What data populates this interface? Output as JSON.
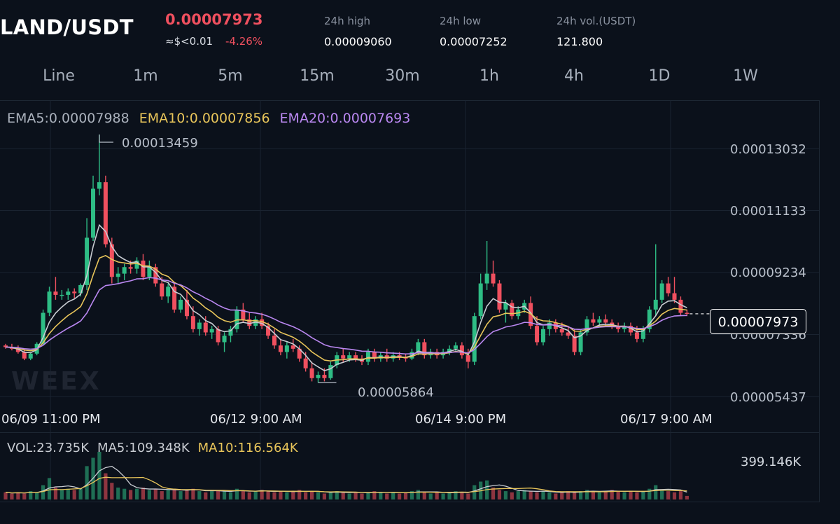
{
  "header": {
    "pair": "LAND/USDT",
    "price": "0.00007973",
    "usd_approx": "≈$<0.01",
    "change": "-4.26%",
    "stats": [
      {
        "label": "24h high",
        "value": "0.00009060"
      },
      {
        "label": "24h low",
        "value": "0.00007252"
      },
      {
        "label": "24h vol.(USDT)",
        "value": "121.800"
      }
    ]
  },
  "tabs": [
    "Line",
    "1m",
    "5m",
    "15m",
    "30m",
    "1h",
    "4h",
    "1D",
    "1W"
  ],
  "indicators": {
    "ema5": "EMA5:0.00007988",
    "ema10": "EMA10:0.00007856",
    "ema20": "EMA20:0.00007693"
  },
  "price_axis": [
    "0.00013032",
    "0.00011133",
    "0.00009234",
    "0.00007336",
    "0.00005437"
  ],
  "time_axis": [
    "06/09 11:00 PM",
    "06/12 9:00 AM",
    "06/14 9:00 PM",
    "06/17 9:00 AM"
  ],
  "annotations": {
    "high": "0.00013459",
    "low": "0.00005864",
    "current": "0.00007973"
  },
  "volume": {
    "vol": "VOL:23.735K",
    "ma5": "MA5:109.348K",
    "ma10": "MA10:116.564K",
    "max": "399.146K"
  },
  "watermark": "WEEX",
  "colors": {
    "up": "#2ebd85",
    "down": "#f0505f",
    "ema5": "#c8ccd2",
    "ema10": "#e8c55a",
    "ema20": "#b987f0",
    "background": "#0b111b"
  },
  "chart_data": {
    "type": "candlestick",
    "ylim": [
      5e-05,
      0.000138
    ],
    "ticks": [
      0.00013032,
      0.00011133,
      9.234e-05,
      7.336e-05,
      5.437e-05
    ],
    "candles": [
      [
        7.0,
        7.05,
        6.9,
        6.95
      ],
      [
        6.95,
        7.05,
        6.85,
        6.9
      ],
      [
        6.9,
        7.0,
        6.75,
        6.8
      ],
      [
        6.8,
        6.9,
        6.55,
        6.6
      ],
      [
        6.6,
        6.8,
        6.55,
        6.75
      ],
      [
        6.75,
        7.1,
        6.7,
        7.05
      ],
      [
        7.05,
        8.1,
        7.0,
        8.0
      ],
      [
        8.0,
        8.8,
        7.9,
        8.65
      ],
      [
        8.65,
        9.1,
        8.4,
        8.55
      ],
      [
        8.55,
        8.7,
        8.4,
        8.55
      ],
      [
        8.55,
        8.75,
        8.4,
        8.65
      ],
      [
        8.65,
        8.75,
        8.45,
        8.6
      ],
      [
        8.6,
        8.9,
        8.5,
        8.85
      ],
      [
        8.85,
        10.9,
        8.7,
        10.3
      ],
      [
        10.3,
        12.2,
        10.2,
        11.8
      ],
      [
        11.8,
        13.46,
        11.6,
        12.0
      ],
      [
        12.0,
        12.2,
        10.0,
        10.1
      ],
      [
        10.1,
        10.3,
        8.9,
        9.1
      ],
      [
        9.1,
        9.4,
        8.9,
        9.2
      ],
      [
        9.2,
        9.5,
        9.0,
        9.4
      ],
      [
        9.4,
        9.6,
        9.2,
        9.35
      ],
      [
        9.35,
        9.7,
        9.2,
        9.6
      ],
      [
        9.6,
        9.8,
        9.0,
        9.1
      ],
      [
        9.1,
        9.6,
        9.0,
        9.4
      ],
      [
        9.4,
        9.5,
        8.8,
        8.9
      ],
      [
        8.9,
        9.1,
        8.4,
        8.5
      ],
      [
        8.5,
        8.9,
        8.3,
        8.8
      ],
      [
        8.8,
        8.9,
        8.0,
        8.1
      ],
      [
        8.1,
        8.5,
        8.0,
        8.4
      ],
      [
        8.4,
        8.7,
        7.8,
        7.9
      ],
      [
        7.9,
        8.2,
        7.4,
        7.5
      ],
      [
        7.5,
        7.8,
        7.3,
        7.7
      ],
      [
        7.7,
        7.9,
        7.3,
        7.4
      ],
      [
        7.4,
        7.6,
        7.2,
        7.5
      ],
      [
        7.5,
        7.6,
        7.0,
        7.1
      ],
      [
        7.1,
        7.4,
        6.8,
        7.3
      ],
      [
        7.3,
        7.6,
        7.1,
        7.5
      ],
      [
        7.5,
        8.2,
        7.4,
        8.1
      ],
      [
        8.1,
        8.3,
        7.7,
        7.8
      ],
      [
        7.8,
        8.0,
        7.5,
        7.6
      ],
      [
        7.6,
        7.9,
        7.5,
        7.8
      ],
      [
        7.8,
        8.0,
        7.5,
        7.6
      ],
      [
        7.6,
        7.7,
        7.2,
        7.3
      ],
      [
        7.3,
        7.5,
        6.9,
        7.0
      ],
      [
        7.0,
        7.2,
        6.7,
        6.8
      ],
      [
        6.8,
        7.1,
        6.6,
        7.0
      ],
      [
        7.0,
        7.2,
        6.8,
        6.9
      ],
      [
        6.9,
        7.0,
        6.5,
        6.6
      ],
      [
        6.6,
        6.8,
        6.2,
        6.3
      ],
      [
        6.3,
        6.5,
        5.9,
        6.0
      ],
      [
        6.0,
        6.2,
        5.86,
        6.1
      ],
      [
        6.1,
        6.3,
        5.9,
        6.0
      ],
      [
        6.0,
        6.5,
        5.95,
        6.4
      ],
      [
        6.4,
        6.8,
        6.3,
        6.7
      ],
      [
        6.7,
        6.9,
        6.5,
        6.6
      ],
      [
        6.6,
        6.8,
        6.5,
        6.7
      ],
      [
        6.7,
        6.8,
        6.5,
        6.6
      ],
      [
        6.6,
        6.7,
        6.4,
        6.5
      ],
      [
        6.5,
        6.9,
        6.4,
        6.8
      ],
      [
        6.8,
        6.9,
        6.5,
        6.6
      ],
      [
        6.6,
        6.8,
        6.5,
        6.7
      ],
      [
        6.7,
        6.9,
        6.5,
        6.6
      ],
      [
        6.6,
        6.8,
        6.5,
        6.7
      ],
      [
        6.7,
        6.8,
        6.55,
        6.65
      ],
      [
        6.65,
        6.75,
        6.5,
        6.6
      ],
      [
        6.6,
        6.9,
        6.55,
        6.8
      ],
      [
        6.8,
        7.2,
        6.7,
        7.1
      ],
      [
        7.1,
        7.2,
        6.6,
        6.7
      ],
      [
        6.7,
        6.9,
        6.6,
        6.8
      ],
      [
        6.8,
        6.9,
        6.6,
        6.7
      ],
      [
        6.7,
        6.9,
        6.6,
        6.8
      ],
      [
        6.8,
        7.0,
        6.7,
        6.9
      ],
      [
        6.9,
        7.1,
        6.8,
        7.0
      ],
      [
        7.0,
        7.1,
        6.6,
        6.7
      ],
      [
        6.7,
        6.9,
        6.3,
        6.5
      ],
      [
        6.5,
        8.0,
        6.4,
        7.9
      ],
      [
        7.9,
        9.2,
        7.8,
        8.9
      ],
      [
        8.9,
        10.2,
        8.7,
        9.2
      ],
      [
        9.2,
        9.6,
        8.8,
        8.9
      ],
      [
        8.9,
        9.0,
        8.0,
        8.1
      ],
      [
        8.1,
        8.4,
        7.7,
        8.3
      ],
      [
        8.3,
        8.4,
        7.8,
        7.9
      ],
      [
        7.9,
        8.2,
        7.8,
        8.1
      ],
      [
        8.1,
        8.4,
        8.0,
        8.3
      ],
      [
        8.3,
        8.5,
        7.5,
        7.6
      ],
      [
        7.6,
        7.9,
        7.0,
        7.1
      ],
      [
        7.1,
        7.6,
        7.0,
        7.5
      ],
      [
        7.5,
        7.8,
        7.3,
        7.7
      ],
      [
        7.7,
        7.8,
        7.4,
        7.5
      ],
      [
        7.5,
        7.7,
        7.3,
        7.4
      ],
      [
        7.4,
        7.6,
        7.2,
        7.3
      ],
      [
        7.3,
        7.5,
        6.7,
        6.8
      ],
      [
        6.8,
        7.5,
        6.7,
        7.4
      ],
      [
        7.4,
        7.9,
        7.3,
        7.8
      ],
      [
        7.8,
        8.0,
        7.6,
        7.7
      ],
      [
        7.7,
        7.9,
        7.6,
        7.8
      ],
      [
        7.8,
        7.95,
        7.6,
        7.7
      ],
      [
        7.7,
        7.8,
        7.5,
        7.6
      ],
      [
        7.6,
        7.7,
        7.4,
        7.5
      ],
      [
        7.5,
        7.7,
        7.4,
        7.6
      ],
      [
        7.6,
        7.7,
        7.3,
        7.4
      ],
      [
        7.4,
        7.6,
        7.1,
        7.2
      ],
      [
        7.2,
        7.6,
        7.1,
        7.5
      ],
      [
        7.5,
        8.2,
        7.4,
        8.1
      ],
      [
        8.1,
        10.1,
        7.9,
        8.4
      ],
      [
        8.4,
        9.0,
        8.3,
        8.9
      ],
      [
        8.9,
        9.1,
        8.5,
        8.6
      ],
      [
        8.6,
        9.1,
        8.3,
        8.4
      ],
      [
        8.4,
        8.5,
        7.9,
        8.0
      ],
      [
        8.0,
        8.1,
        7.9,
        7.97
      ]
    ],
    "volumes": [
      6,
      5,
      6,
      5,
      7,
      6,
      12,
      18,
      10,
      8,
      9,
      8,
      9,
      28,
      35,
      40,
      22,
      14,
      10,
      9,
      8,
      9,
      10,
      8,
      9,
      7,
      8,
      9,
      7,
      8,
      9,
      7,
      6,
      7,
      8,
      7,
      6,
      9,
      7,
      6,
      7,
      8,
      7,
      6,
      7,
      6,
      7,
      8,
      6,
      7,
      6,
      5,
      6,
      7,
      6,
      5,
      6,
      5,
      6,
      7,
      6,
      5,
      6,
      5,
      6,
      7,
      8,
      6,
      5,
      6,
      5,
      6,
      7,
      6,
      5,
      12,
      15,
      16,
      10,
      8,
      7,
      6,
      7,
      8,
      7,
      6,
      7,
      6,
      5,
      6,
      7,
      6,
      7,
      8,
      7,
      6,
      7,
      8,
      7,
      6,
      7,
      6,
      7,
      9,
      12,
      8,
      7,
      6,
      7,
      3
    ],
    "volume_max": 399.146
  }
}
